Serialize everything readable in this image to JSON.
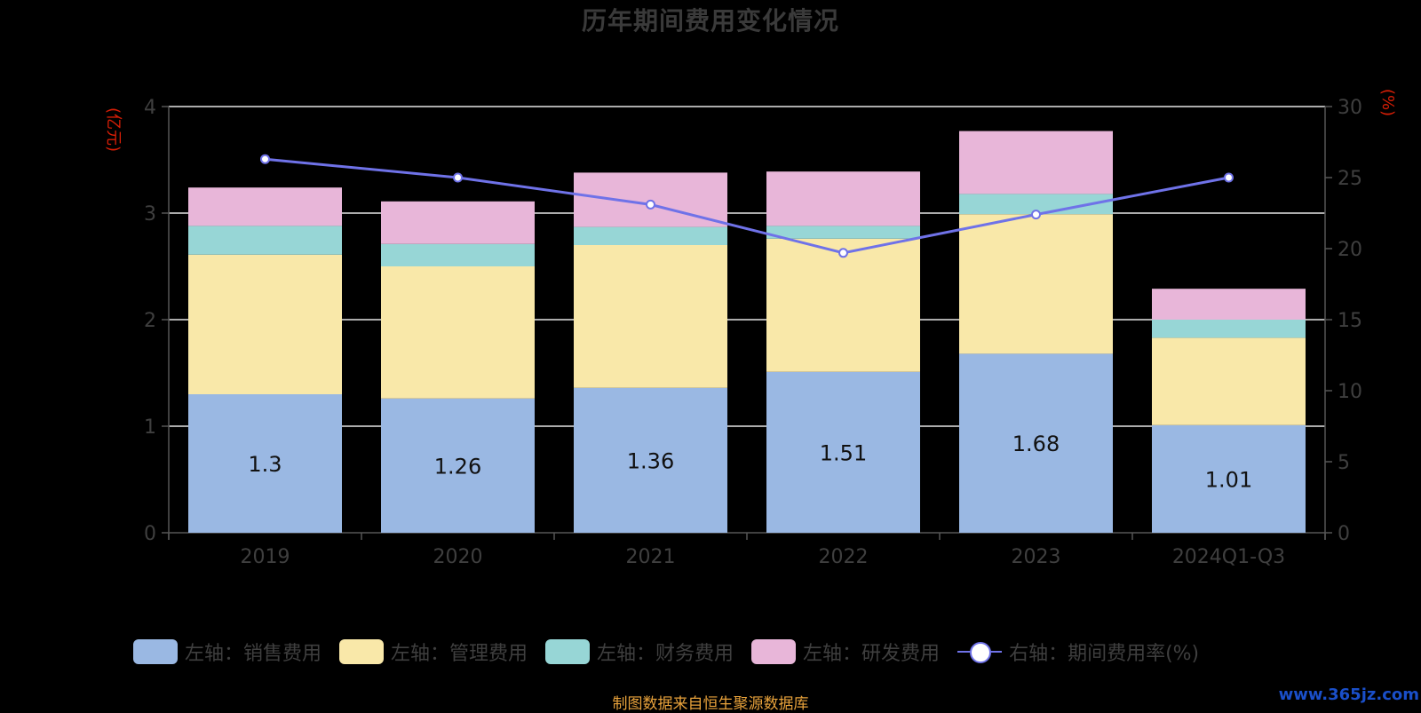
{
  "chart_data": {
    "type": "bar",
    "title": "历年期间费用变化情况",
    "categories": [
      "2019",
      "2020",
      "2021",
      "2022",
      "2023",
      "2024Q1-Q3"
    ],
    "series": [
      {
        "name": "左轴：销售费用",
        "axis": "left",
        "type": "bar",
        "color": "#9ab8e3",
        "values": [
          1.3,
          1.26,
          1.36,
          1.51,
          1.68,
          1.01
        ]
      },
      {
        "name": "左轴：管理费用",
        "axis": "left",
        "type": "bar",
        "color": "#f9e8a9",
        "values": [
          1.31,
          1.24,
          1.34,
          1.25,
          1.31,
          0.82
        ]
      },
      {
        "name": "左轴：财务费用",
        "axis": "left",
        "type": "bar",
        "color": "#97d6d6",
        "values": [
          0.27,
          0.21,
          0.17,
          0.12,
          0.19,
          0.17
        ]
      },
      {
        "name": "左轴：研发费用",
        "axis": "left",
        "type": "bar",
        "color": "#e8b6d9",
        "values": [
          0.36,
          0.4,
          0.51,
          0.51,
          0.59,
          0.29
        ]
      },
      {
        "name": "右轴：期间费用率(%)",
        "axis": "right",
        "type": "line",
        "color": "#6f72e8",
        "values": [
          26.3,
          25.0,
          23.1,
          19.7,
          22.4,
          25.0
        ]
      }
    ],
    "data_labels": [
      "1.3",
      "1.26",
      "1.36",
      "1.51",
      "1.68",
      "1.01"
    ],
    "left_axis": {
      "unit": "(亿元)",
      "ylim": [
        0,
        4
      ],
      "ticks": [
        "0",
        "1",
        "2",
        "3",
        "4"
      ]
    },
    "right_axis": {
      "unit": "(%)",
      "ylim": [
        0,
        30
      ],
      "ticks": [
        "0",
        "5",
        "10",
        "15",
        "20",
        "25",
        "30"
      ]
    },
    "grid": true,
    "legend_position": "bottom"
  },
  "footer": {
    "source": "制图数据来自恒生聚源数据库",
    "watermark": "www.365jz.com"
  }
}
